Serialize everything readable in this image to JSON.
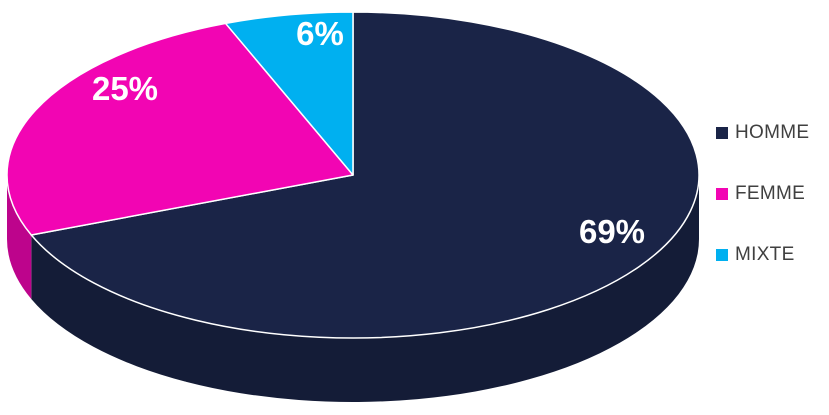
{
  "chart_data": {
    "type": "pie",
    "style": "3d",
    "categories": [
      "HOMME",
      "FEMME",
      "MIXTE"
    ],
    "values": [
      69,
      25,
      6
    ],
    "labels": [
      "69%",
      "25%",
      "6%"
    ],
    "colors": [
      "#1a2447",
      "#f205b3",
      "#00b0f0"
    ],
    "legend": "right"
  }
}
